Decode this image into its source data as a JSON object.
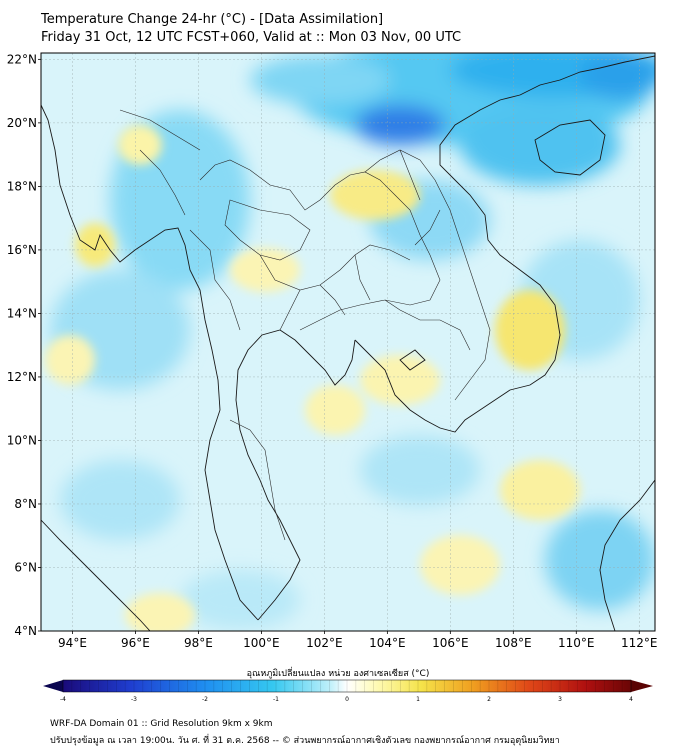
{
  "header": {
    "title": "Temperature Change 24-hr (°C) - [Data Assimilation]",
    "subtitle": "Friday 31 Oct, 12 UTC FCST+060, Valid at :: Mon 03 Nov, 00 UTC"
  },
  "map": {
    "lat_labels": [
      "22°N",
      "20°N",
      "18°N",
      "16°N",
      "14°N",
      "12°N",
      "10°N",
      "8°N",
      "6°N",
      "4°N"
    ],
    "lon_labels": [
      "94°E",
      "96°E",
      "98°E",
      "100°E",
      "102°E",
      "104°E",
      "106°E",
      "108°E",
      "110°E",
      "112°E"
    ],
    "lon_range": [
      93,
      112.5
    ],
    "lat_range": [
      4,
      22.2
    ],
    "background_color": "#d9f4fa"
  },
  "colorbar": {
    "title": "อุณหภูมิเปลี่ยนแปลง หน่วย องศาเซลเซียส (°C)",
    "tick_labels": [
      "-4",
      "-3",
      "-2",
      "-1",
      "0",
      "1",
      "2",
      "3",
      "4"
    ],
    "range": [
      -4,
      4
    ],
    "colors": [
      "#1a0a7a",
      "#1f3ed0",
      "#1f8ef0",
      "#35c8f0",
      "#bff0fa",
      "#ffffff",
      "#fffbb8",
      "#f5e34a",
      "#f0a020",
      "#e04818",
      "#b01010",
      "#6a0505"
    ]
  },
  "footer": {
    "line1": "WRF-DA Domain 01 :: Grid Resolution 9km x 9km",
    "line2": "ปรับปรุงข้อมูล ณ เวลา 19:00น. วัน ศ. ที่ 31 ต.ค. 2568 -- © ส่วนพยากรณ์อากาศเชิงตัวเลข กองพยากรณ์อากาศ กรมอุตุนิยมวิทยา"
  }
}
